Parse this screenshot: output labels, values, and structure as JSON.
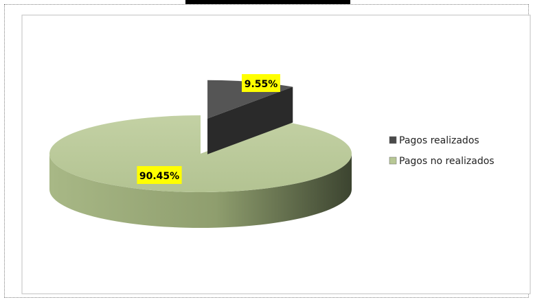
{
  "chart_data": {
    "type": "pie",
    "title": "",
    "categories": [
      "Pagos realizados",
      "Pagos no realizados"
    ],
    "values": [
      9.55,
      90.45
    ],
    "value_labels": [
      "9.55%",
      "90.45%"
    ],
    "colors": [
      "#4a4a4a",
      "#b7c795"
    ],
    "legend_position": "right",
    "style": "3d-exploded"
  }
}
